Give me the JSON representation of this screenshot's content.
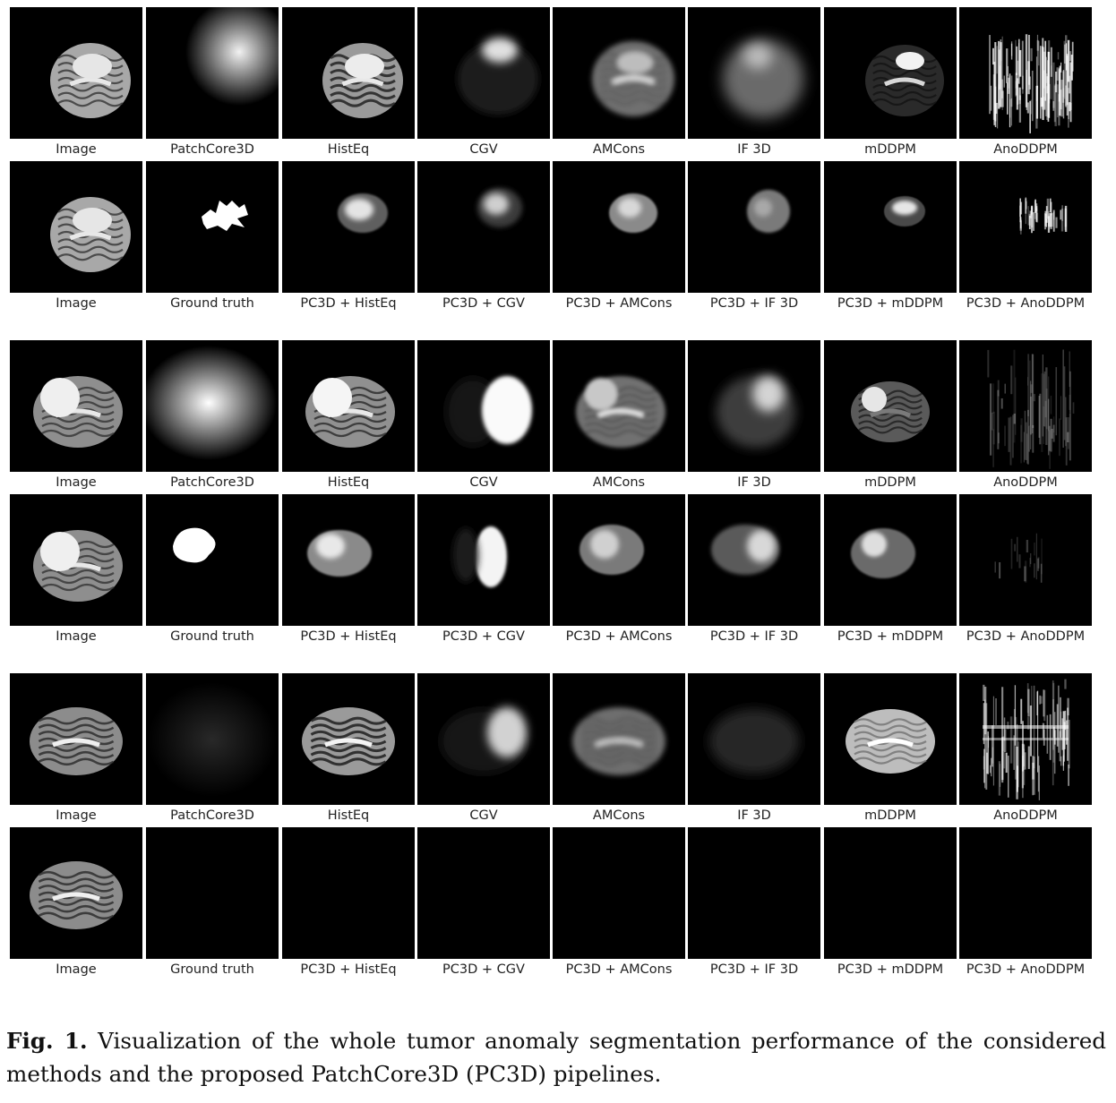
{
  "groups": [
    {
      "top_labels": [
        "Image",
        "PatchCore3D",
        "HistEq",
        "CGV",
        "AMCons",
        "IF 3D",
        "mDDPM",
        "AnoDDPM"
      ],
      "bottom_labels": [
        "Image",
        "Ground truth",
        "PC3D + HistEq",
        "PC3D + CGV",
        "PC3D + AMCons",
        "PC3D + IF 3D",
        "PC3D + mDDPM",
        "PC3D + AnoDDPM"
      ]
    },
    {
      "top_labels": [
        "Image",
        "PatchCore3D",
        "HistEq",
        "CGV",
        "AMCons",
        "IF 3D",
        "mDDPM",
        "AnoDDPM"
      ],
      "bottom_labels": [
        "Image",
        "Ground truth",
        "PC3D + HistEq",
        "PC3D + CGV",
        "PC3D + AMCons",
        "PC3D + IF 3D",
        "PC3D + mDDPM",
        "PC3D + AnoDDPM"
      ]
    },
    {
      "top_labels": [
        "Image",
        "PatchCore3D",
        "HistEq",
        "CGV",
        "AMCons",
        "IF 3D",
        "mDDPM",
        "AnoDDPM"
      ],
      "bottom_labels": [
        "Image",
        "Ground truth",
        "PC3D + HistEq",
        "PC3D + CGV",
        "PC3D + AMCons",
        "PC3D + IF 3D",
        "PC3D + mDDPM",
        "PC3D + AnoDDPM"
      ]
    }
  ],
  "caption": {
    "prefix": "Fig. 1.",
    "text": "Visualization of the whole tumor anomaly segmentation performance of the considered methods and the proposed PatchCore3D (PC3D) pipelines."
  }
}
